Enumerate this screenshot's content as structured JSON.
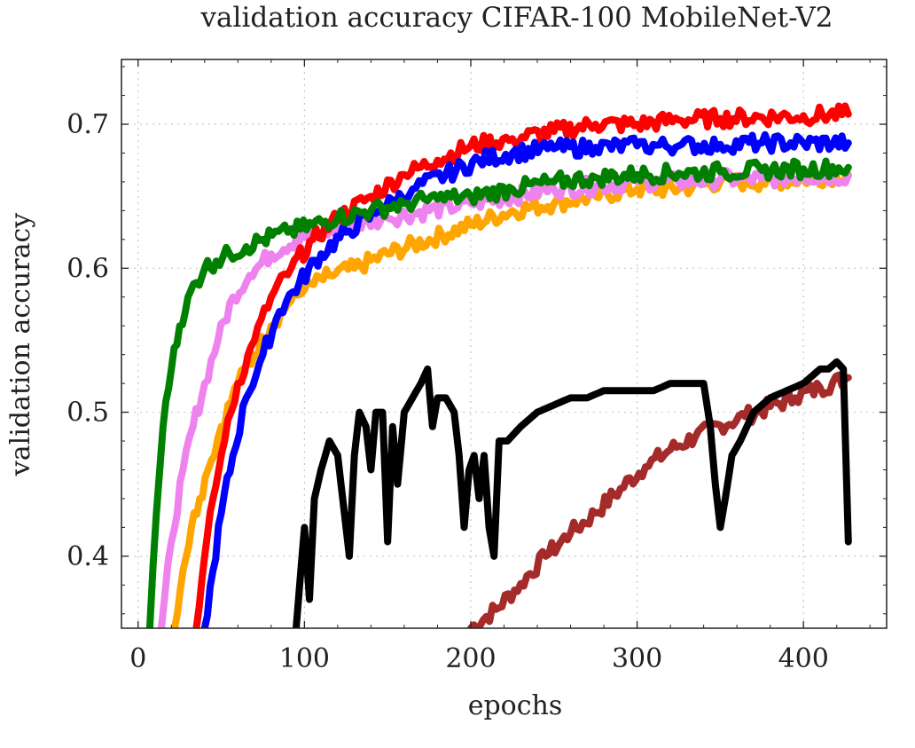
{
  "chart_data": {
    "type": "line",
    "title": "validation accuracy CIFAR-100 MobileNet-V2",
    "xlabel": "epochs",
    "ylabel": "validation accuracy",
    "xlim": [
      -10,
      450
    ],
    "ylim": [
      0.35,
      0.745
    ],
    "grid": true,
    "x_ticks": [
      0,
      100,
      200,
      300,
      400
    ],
    "x_tick_labels": [
      "0",
      "100",
      "200",
      "300",
      "400"
    ],
    "y_ticks": [
      0.4,
      0.5,
      0.6,
      0.7
    ],
    "y_tick_labels": [
      "0.4",
      "0.5",
      "0.6",
      "0.7"
    ],
    "series": [
      {
        "name": "brown",
        "color": "#a52a2a",
        "x": [
          200,
          215,
          230,
          245,
          260,
          275,
          290,
          305,
          320,
          335,
          350,
          365,
          380,
          395,
          410,
          427
        ],
        "y": [
          0.35,
          0.363,
          0.381,
          0.4,
          0.416,
          0.43,
          0.447,
          0.462,
          0.474,
          0.483,
          0.491,
          0.497,
          0.504,
          0.51,
          0.517,
          0.524
        ]
      },
      {
        "name": "black",
        "color": "#000000",
        "x": [
          95,
          100,
          103,
          106,
          110,
          115,
          120,
          124,
          127,
          130,
          133,
          137,
          140,
          143,
          147,
          150,
          153,
          156,
          160,
          165,
          170,
          174,
          177,
          180,
          185,
          190,
          193,
          196,
          199,
          202,
          205,
          208,
          211,
          214,
          217,
          222,
          230,
          240,
          250,
          260,
          270,
          280,
          290,
          300,
          310,
          320,
          330,
          340,
          344,
          347,
          350,
          353,
          357,
          362,
          370,
          380,
          390,
          400,
          410,
          415,
          420,
          424,
          427
        ],
        "y": [
          0.35,
          0.42,
          0.37,
          0.44,
          0.46,
          0.48,
          0.47,
          0.43,
          0.4,
          0.47,
          0.5,
          0.49,
          0.46,
          0.5,
          0.5,
          0.41,
          0.49,
          0.45,
          0.5,
          0.51,
          0.52,
          0.53,
          0.49,
          0.51,
          0.51,
          0.5,
          0.47,
          0.42,
          0.46,
          0.47,
          0.44,
          0.47,
          0.42,
          0.4,
          0.48,
          0.48,
          0.49,
          0.5,
          0.505,
          0.51,
          0.51,
          0.515,
          0.515,
          0.515,
          0.515,
          0.52,
          0.52,
          0.52,
          0.49,
          0.45,
          0.42,
          0.44,
          0.47,
          0.48,
          0.5,
          0.51,
          0.515,
          0.52,
          0.53,
          0.53,
          0.535,
          0.53,
          0.41
        ]
      },
      {
        "name": "orange",
        "color": "#ffa500",
        "x": [
          22,
          27,
          32,
          37,
          42,
          50,
          60,
          70,
          80,
          90,
          100,
          115,
          130,
          150,
          175,
          200,
          225,
          250,
          275,
          300,
          325,
          350,
          375,
          400,
          427
        ],
        "y": [
          0.35,
          0.39,
          0.42,
          0.44,
          0.46,
          0.49,
          0.52,
          0.54,
          0.56,
          0.575,
          0.585,
          0.595,
          0.6,
          0.61,
          0.62,
          0.63,
          0.64,
          0.645,
          0.65,
          0.655,
          0.655,
          0.66,
          0.66,
          0.662,
          0.665
        ]
      },
      {
        "name": "violet",
        "color": "#ee82ee",
        "x": [
          14,
          20,
          27,
          33,
          40,
          48,
          57,
          67,
          80,
          95,
          110,
          130,
          150,
          175,
          200,
          225,
          250,
          275,
          300,
          325,
          350,
          375,
          400,
          427
        ],
        "y": [
          0.35,
          0.41,
          0.46,
          0.49,
          0.52,
          0.55,
          0.58,
          0.595,
          0.61,
          0.62,
          0.625,
          0.63,
          0.635,
          0.64,
          0.645,
          0.65,
          0.655,
          0.657,
          0.66,
          0.66,
          0.662,
          0.662,
          0.664,
          0.664
        ]
      },
      {
        "name": "red",
        "color": "#ff0000",
        "x": [
          35,
          40,
          45,
          52,
          60,
          70,
          80,
          92,
          105,
          120,
          140,
          160,
          180,
          200,
          225,
          250,
          275,
          300,
          325,
          350,
          375,
          400,
          427
        ],
        "y": [
          0.35,
          0.4,
          0.44,
          0.48,
          0.52,
          0.55,
          0.58,
          0.6,
          0.62,
          0.635,
          0.65,
          0.665,
          0.675,
          0.685,
          0.69,
          0.695,
          0.7,
          0.7,
          0.703,
          0.704,
          0.705,
          0.706,
          0.707
        ]
      },
      {
        "name": "blue",
        "color": "#0000ff",
        "x": [
          40,
          45,
          50,
          57,
          65,
          75,
          85,
          97,
          110,
          125,
          145,
          165,
          185,
          205,
          225,
          250,
          275,
          300,
          325,
          350,
          375,
          400,
          427
        ],
        "y": [
          0.35,
          0.39,
          0.43,
          0.47,
          0.51,
          0.54,
          0.57,
          0.59,
          0.61,
          0.625,
          0.64,
          0.655,
          0.665,
          0.675,
          0.68,
          0.683,
          0.684,
          0.685,
          0.685,
          0.686,
          0.687,
          0.687,
          0.687
        ]
      },
      {
        "name": "green",
        "color": "#008000",
        "x": [
          7,
          11,
          15,
          20,
          25,
          30,
          35,
          40,
          47,
          55,
          65,
          75,
          90,
          105,
          120,
          140,
          160,
          180,
          200,
          225,
          250,
          275,
          300,
          325,
          350,
          375,
          400,
          427
        ],
        "y": [
          0.35,
          0.43,
          0.49,
          0.53,
          0.56,
          0.58,
          0.59,
          0.6,
          0.605,
          0.61,
          0.615,
          0.62,
          0.625,
          0.63,
          0.635,
          0.64,
          0.645,
          0.648,
          0.65,
          0.655,
          0.66,
          0.663,
          0.665,
          0.666,
          0.667,
          0.668,
          0.669,
          0.67
        ]
      }
    ]
  }
}
